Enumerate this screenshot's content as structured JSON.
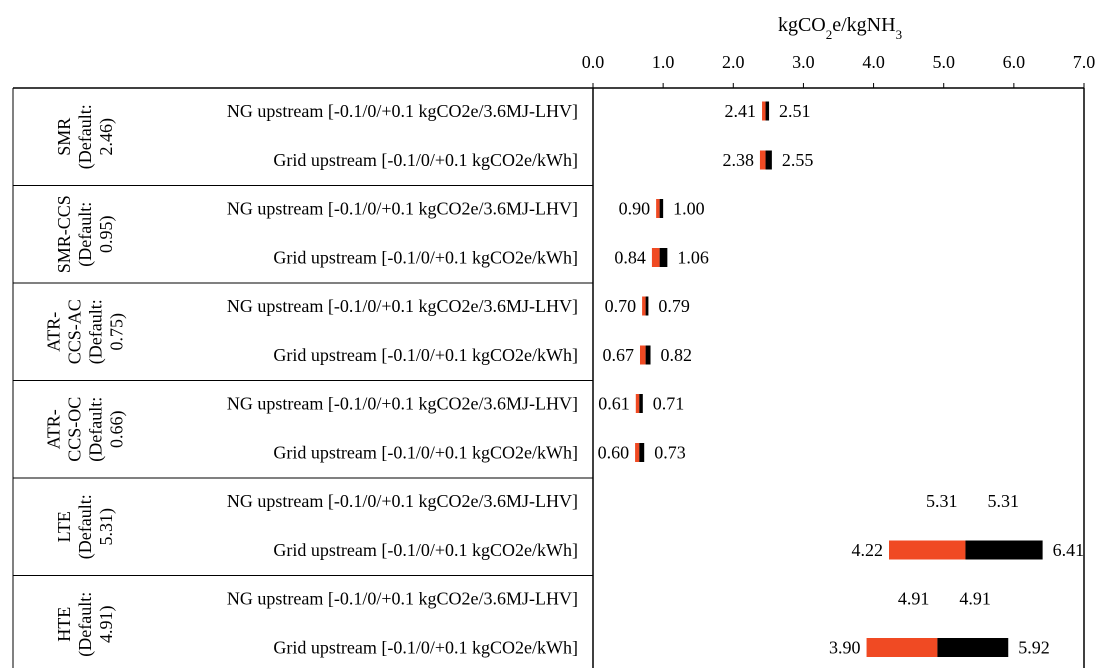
{
  "chart_data": {
    "type": "bar",
    "subtype": "tornado",
    "title": "",
    "xlabel": "kgCO₂e/kgNH₃",
    "xlabel_parts": {
      "base1": "kgCO",
      "sub1": "2",
      "base2": "e/kgNH",
      "sub2": "3"
    },
    "xlim": [
      0,
      7
    ],
    "xticks": [
      0,
      1,
      2,
      3,
      4,
      5,
      6,
      7
    ],
    "xtick_labels": [
      "0.0",
      "1.0",
      "2.0",
      "3.0",
      "4.0",
      "5.0",
      "6.0",
      "7.0"
    ],
    "colors": {
      "low": "#f04a23",
      "high": "#000000",
      "axis": "#000000"
    },
    "groups": [
      {
        "label_lines": [
          "SMR",
          "(Default:",
          "2.46)"
        ],
        "default": 2.46,
        "rows": [
          {
            "label": "NG upstream [-0.1/0/+0.1 kgCO2e/3.6MJ-LHV]",
            "low": 2.41,
            "high": 2.51,
            "low_text": "2.41",
            "high_text": "2.51"
          },
          {
            "label": "Grid upstream [-0.1/0/+0.1 kgCO2e/kWh]",
            "low": 2.38,
            "high": 2.55,
            "low_text": "2.38",
            "high_text": "2.55"
          }
        ]
      },
      {
        "label_lines": [
          "SMR-CCS",
          "(Default:",
          "0.95)"
        ],
        "default": 0.95,
        "rows": [
          {
            "label": "NG upstream [-0.1/0/+0.1 kgCO2e/3.6MJ-LHV]",
            "low": 0.9,
            "high": 1.0,
            "low_text": "0.90",
            "high_text": "1.00"
          },
          {
            "label": "Grid upstream [-0.1/0/+0.1 kgCO2e/kWh]",
            "low": 0.84,
            "high": 1.06,
            "low_text": "0.84",
            "high_text": "1.06"
          }
        ]
      },
      {
        "label_lines": [
          "ATR-",
          "CCS-AC",
          "(Default:",
          "0.75)"
        ],
        "default": 0.75,
        "rows": [
          {
            "label": "NG upstream [-0.1/0/+0.1 kgCO2e/3.6MJ-LHV]",
            "low": 0.7,
            "high": 0.79,
            "low_text": "0.70",
            "high_text": "0.79"
          },
          {
            "label": "Grid upstream [-0.1/0/+0.1 kgCO2e/kWh]",
            "low": 0.67,
            "high": 0.82,
            "low_text": "0.67",
            "high_text": "0.82"
          }
        ]
      },
      {
        "label_lines": [
          "ATR-",
          "CCS-OC",
          "(Default:",
          "0.66)"
        ],
        "default": 0.66,
        "rows": [
          {
            "label": "NG upstream [-0.1/0/+0.1 kgCO2e/3.6MJ-LHV]",
            "low": 0.61,
            "high": 0.71,
            "low_text": "0.61",
            "high_text": "0.71"
          },
          {
            "label": "Grid upstream [-0.1/0/+0.1 kgCO2e/kWh]",
            "low": 0.6,
            "high": 0.73,
            "low_text": "0.60",
            "high_text": "0.73"
          }
        ]
      },
      {
        "label_lines": [
          "LTE",
          "(Default:",
          "5.31)"
        ],
        "default": 5.31,
        "rows": [
          {
            "label": "NG upstream [-0.1/0/+0.1 kgCO2e/3.6MJ-LHV]",
            "low": 5.31,
            "high": 5.31,
            "low_text": "5.31",
            "high_text": "5.31"
          },
          {
            "label": "Grid upstream [-0.1/0/+0.1 kgCO2e/kWh]",
            "low": 4.22,
            "high": 6.41,
            "low_text": "4.22",
            "high_text": "6.41"
          }
        ]
      },
      {
        "label_lines": [
          "HTE",
          "(Default:",
          "4.91)"
        ],
        "default": 4.91,
        "rows": [
          {
            "label": "NG upstream [-0.1/0/+0.1 kgCO2e/3.6MJ-LHV]",
            "low": 4.91,
            "high": 4.91,
            "low_text": "4.91",
            "high_text": "4.91"
          },
          {
            "label": "Grid upstream [-0.1/0/+0.1 kgCO2e/kWh]",
            "low": 3.9,
            "high": 5.92,
            "low_text": "3.90",
            "high_text": "5.92"
          }
        ]
      }
    ]
  }
}
